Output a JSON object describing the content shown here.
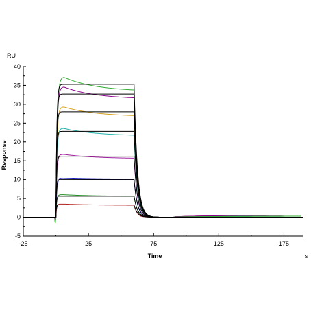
{
  "chart_data": {
    "type": "line",
    "title": "",
    "xlabel": "Time",
    "ylabel": "Response",
    "x_unit": "s",
    "y_unit": "RU",
    "xlim": [
      -25,
      190
    ],
    "ylim": [
      -5,
      40
    ],
    "x_ticks": [
      "-25",
      "25",
      "75",
      "125",
      "175"
    ],
    "y_ticks": [
      "-5",
      "0",
      "5",
      "10",
      "15",
      "20",
      "25",
      "30",
      "35",
      "40"
    ],
    "grid": false,
    "legend": "none",
    "injection_start": 0,
    "injection_end": 60,
    "fit_color": "#000000",
    "series": [
      {
        "peak": 3.5,
        "plateau": 3.3,
        "end_assoc": 3.2,
        "color": "#b22222"
      },
      {
        "peak": 6.0,
        "plateau": 5.6,
        "end_assoc": 5.6,
        "color": "#228b22"
      },
      {
        "peak": 10.3,
        "plateau": 10.0,
        "end_assoc": 10.0,
        "color": "#1f1fbf"
      },
      {
        "peak": 16.7,
        "plateau": 16.2,
        "end_assoc": 15.7,
        "color": "#a020a0"
      },
      {
        "peak": 23.6,
        "plateau": 22.8,
        "end_assoc": 21.8,
        "color": "#20b2aa"
      },
      {
        "peak": 29.3,
        "plateau": 28.0,
        "end_assoc": 27.0,
        "color": "#d4a017"
      },
      {
        "peak": 34.6,
        "plateau": 32.7,
        "end_assoc": 31.7,
        "color": "#8b008b"
      },
      {
        "peak": 37.2,
        "plateau": 35.3,
        "end_assoc": 33.8,
        "color": "#2eaa2e"
      }
    ]
  }
}
